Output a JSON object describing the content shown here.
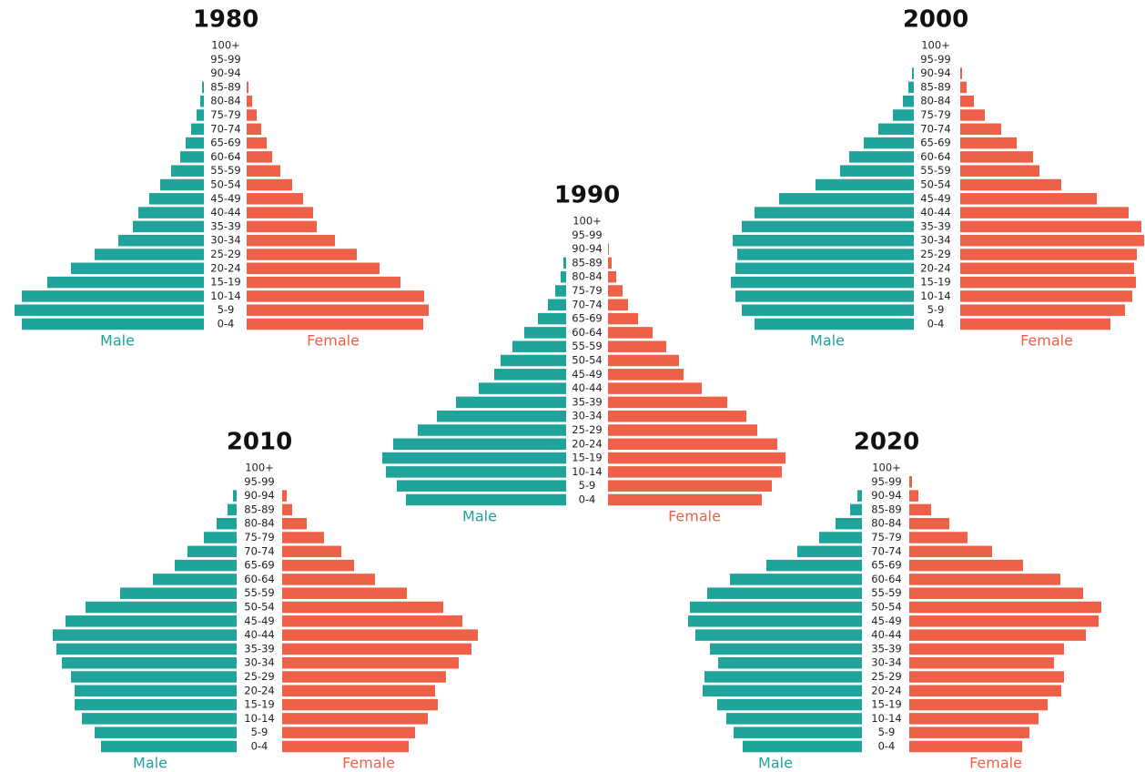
{
  "chart_data": [
    {
      "type": "pyramid",
      "title": "1980",
      "categories": [
        "100+",
        "95-99",
        "90-94",
        "85-89",
        "80-84",
        "75-79",
        "70-74",
        "65-69",
        "60-64",
        "55-59",
        "50-54",
        "45-49",
        "40-44",
        "35-39",
        "30-34",
        "25-29",
        "20-24",
        "15-19",
        "10-14",
        "5-9",
        "0-4"
      ],
      "series": [
        {
          "name": "Male",
          "color": "#1fa39a",
          "values": [
            0,
            0,
            0,
            2,
            4,
            8,
            14,
            20,
            26,
            36,
            48,
            60,
            72,
            78,
            94,
            120,
            146,
            172,
            200,
            208,
            200
          ]
        },
        {
          "name": "Female",
          "color": "#ee6148",
          "values": [
            0,
            0,
            0,
            2,
            6,
            11,
            16,
            22,
            28,
            37,
            50,
            62,
            73,
            77,
            97,
            121,
            146,
            169,
            195,
            200,
            194
          ]
        }
      ]
    },
    {
      "type": "pyramid",
      "title": "1990",
      "categories": [
        "100+",
        "95-99",
        "90-94",
        "85-89",
        "80-84",
        "75-79",
        "70-74",
        "65-69",
        "60-64",
        "55-59",
        "50-54",
        "45-49",
        "40-44",
        "35-39",
        "30-34",
        "25-29",
        "20-24",
        "15-19",
        "10-14",
        "5-9",
        "0-4"
      ],
      "series": [
        {
          "name": "Male",
          "color": "#1fa39a",
          "values": [
            0,
            0,
            0,
            3,
            6,
            12,
            20,
            31,
            46,
            59,
            72,
            79,
            96,
            121,
            142,
            163,
            190,
            202,
            198,
            186,
            176
          ]
        },
        {
          "name": "Female",
          "color": "#ee6148",
          "values": [
            0,
            0,
            1,
            4,
            9,
            16,
            22,
            33,
            49,
            64,
            78,
            83,
            103,
            131,
            152,
            164,
            186,
            195,
            191,
            180,
            169
          ]
        }
      ]
    },
    {
      "type": "pyramid",
      "title": "2000",
      "categories": [
        "100+",
        "95-99",
        "90-94",
        "85-89",
        "80-84",
        "75-79",
        "70-74",
        "65-69",
        "60-64",
        "55-59",
        "50-54",
        "45-49",
        "40-44",
        "35-39",
        "30-34",
        "25-29",
        "20-24",
        "15-19",
        "10-14",
        "5-9",
        "0-4"
      ],
      "series": [
        {
          "name": "Male",
          "color": "#1fa39a",
          "values": [
            0,
            0,
            2,
            6,
            12,
            23,
            39,
            55,
            71,
            81,
            108,
            148,
            175,
            189,
            199,
            194,
            196,
            201,
            196,
            189,
            175
          ]
        },
        {
          "name": "Female",
          "color": "#ee6148",
          "values": [
            0,
            0,
            2,
            7,
            15,
            27,
            45,
            62,
            80,
            87,
            111,
            150,
            185,
            199,
            202,
            194,
            191,
            193,
            189,
            181,
            165
          ]
        }
      ]
    },
    {
      "type": "pyramid",
      "title": "2010",
      "categories": [
        "100+",
        "95-99",
        "90-94",
        "85-89",
        "80-84",
        "75-79",
        "70-74",
        "65-69",
        "60-64",
        "55-59",
        "50-54",
        "45-49",
        "40-44",
        "35-39",
        "30-34",
        "25-29",
        "20-24",
        "15-19",
        "10-14",
        "5-9",
        "0-4"
      ],
      "series": [
        {
          "name": "Male",
          "color": "#1fa39a",
          "values": [
            0,
            0,
            4,
            10,
            22,
            36,
            54,
            68,
            92,
            128,
            166,
            188,
            202,
            198,
            192,
            182,
            178,
            178,
            170,
            156,
            149
          ]
        },
        {
          "name": "Female",
          "color": "#ee6148",
          "values": [
            0,
            0,
            5,
            11,
            27,
            46,
            65,
            79,
            102,
            137,
            177,
            198,
            215,
            208,
            194,
            180,
            168,
            171,
            160,
            146,
            139
          ]
        }
      ]
    },
    {
      "type": "pyramid",
      "title": "2020",
      "categories": [
        "100+",
        "95-99",
        "90-94",
        "85-89",
        "80-84",
        "75-79",
        "70-74",
        "65-69",
        "60-64",
        "55-59",
        "50-54",
        "45-49",
        "40-44",
        "35-39",
        "30-34",
        "25-29",
        "20-24",
        "15-19",
        "10-14",
        "5-9",
        "0-4"
      ],
      "series": [
        {
          "name": "Male",
          "color": "#1fa39a",
          "values": [
            0,
            0,
            5,
            13,
            29,
            47,
            71,
            105,
            145,
            170,
            189,
            191,
            183,
            167,
            158,
            173,
            175,
            159,
            149,
            141,
            131
          ]
        },
        {
          "name": "Female",
          "color": "#ee6148",
          "values": [
            0,
            3,
            10,
            24,
            44,
            64,
            91,
            125,
            166,
            191,
            211,
            208,
            194,
            170,
            159,
            170,
            167,
            152,
            142,
            132,
            124
          ]
        }
      ]
    }
  ]
}
